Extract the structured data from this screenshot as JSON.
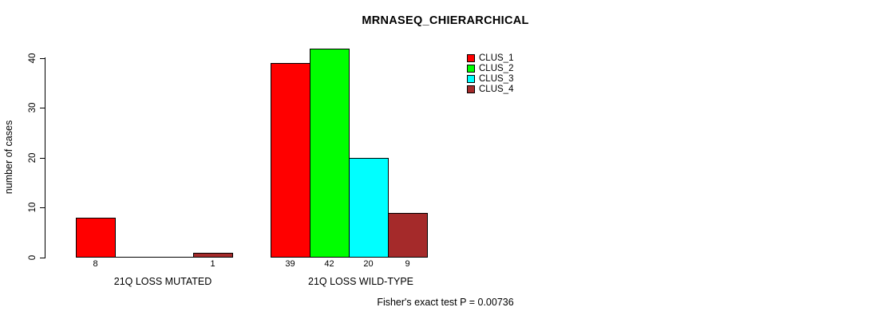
{
  "chart_data": {
    "type": "bar",
    "title": "MRNASEQ_CHIERARCHICAL",
    "ylabel": "number of cases",
    "xlabel": "",
    "ylim": [
      0,
      40
    ],
    "yticks": [
      0,
      10,
      20,
      30,
      40
    ],
    "grid": false,
    "legend_position": "top-right",
    "categories": [
      "21Q LOSS MUTATED",
      "21Q LOSS WILD-TYPE"
    ],
    "series": [
      {
        "name": "CLUS_1",
        "color": "#ff0000",
        "values": [
          8,
          39
        ]
      },
      {
        "name": "CLUS_2",
        "color": "#00ff00",
        "values": [
          0,
          42
        ]
      },
      {
        "name": "CLUS_3",
        "color": "#00ffff",
        "values": [
          0,
          20
        ]
      },
      {
        "name": "CLUS_4",
        "color": "#a52a2a",
        "values": [
          1,
          9
        ]
      }
    ],
    "bar_labels_shown": [
      "8",
      "1",
      "39",
      "42",
      "20",
      "9"
    ],
    "annotation": "Fisher's exact test P = 0.00736"
  }
}
